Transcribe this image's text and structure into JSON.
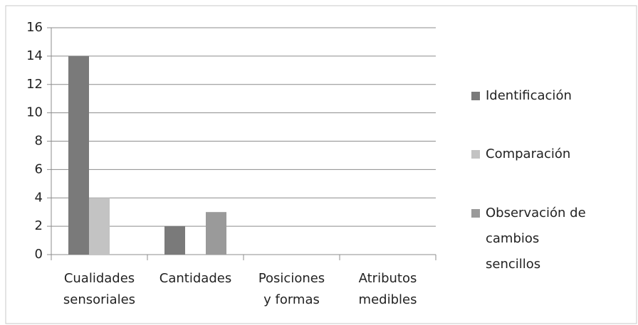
{
  "chart_data": {
    "type": "bar",
    "categories": [
      "Cualidades sensoriales",
      "Cantidades",
      "Posiciones y formas",
      "Atributos medibles"
    ],
    "series": [
      {
        "name": "Identificación",
        "color": "#7a7a7a",
        "values": [
          14,
          2,
          0,
          0
        ]
      },
      {
        "name": "Comparación",
        "color": "#c3c3c3",
        "values": [
          4,
          0,
          0,
          0
        ]
      },
      {
        "name": "Observación de cambios sencillos",
        "color": "#9a9a9a",
        "values": [
          0,
          3,
          0,
          0
        ]
      }
    ],
    "ylim": [
      0,
      16
    ],
    "yticks": [
      0,
      2,
      4,
      6,
      8,
      10,
      12,
      14,
      16
    ],
    "grid": true,
    "legend": "right"
  }
}
